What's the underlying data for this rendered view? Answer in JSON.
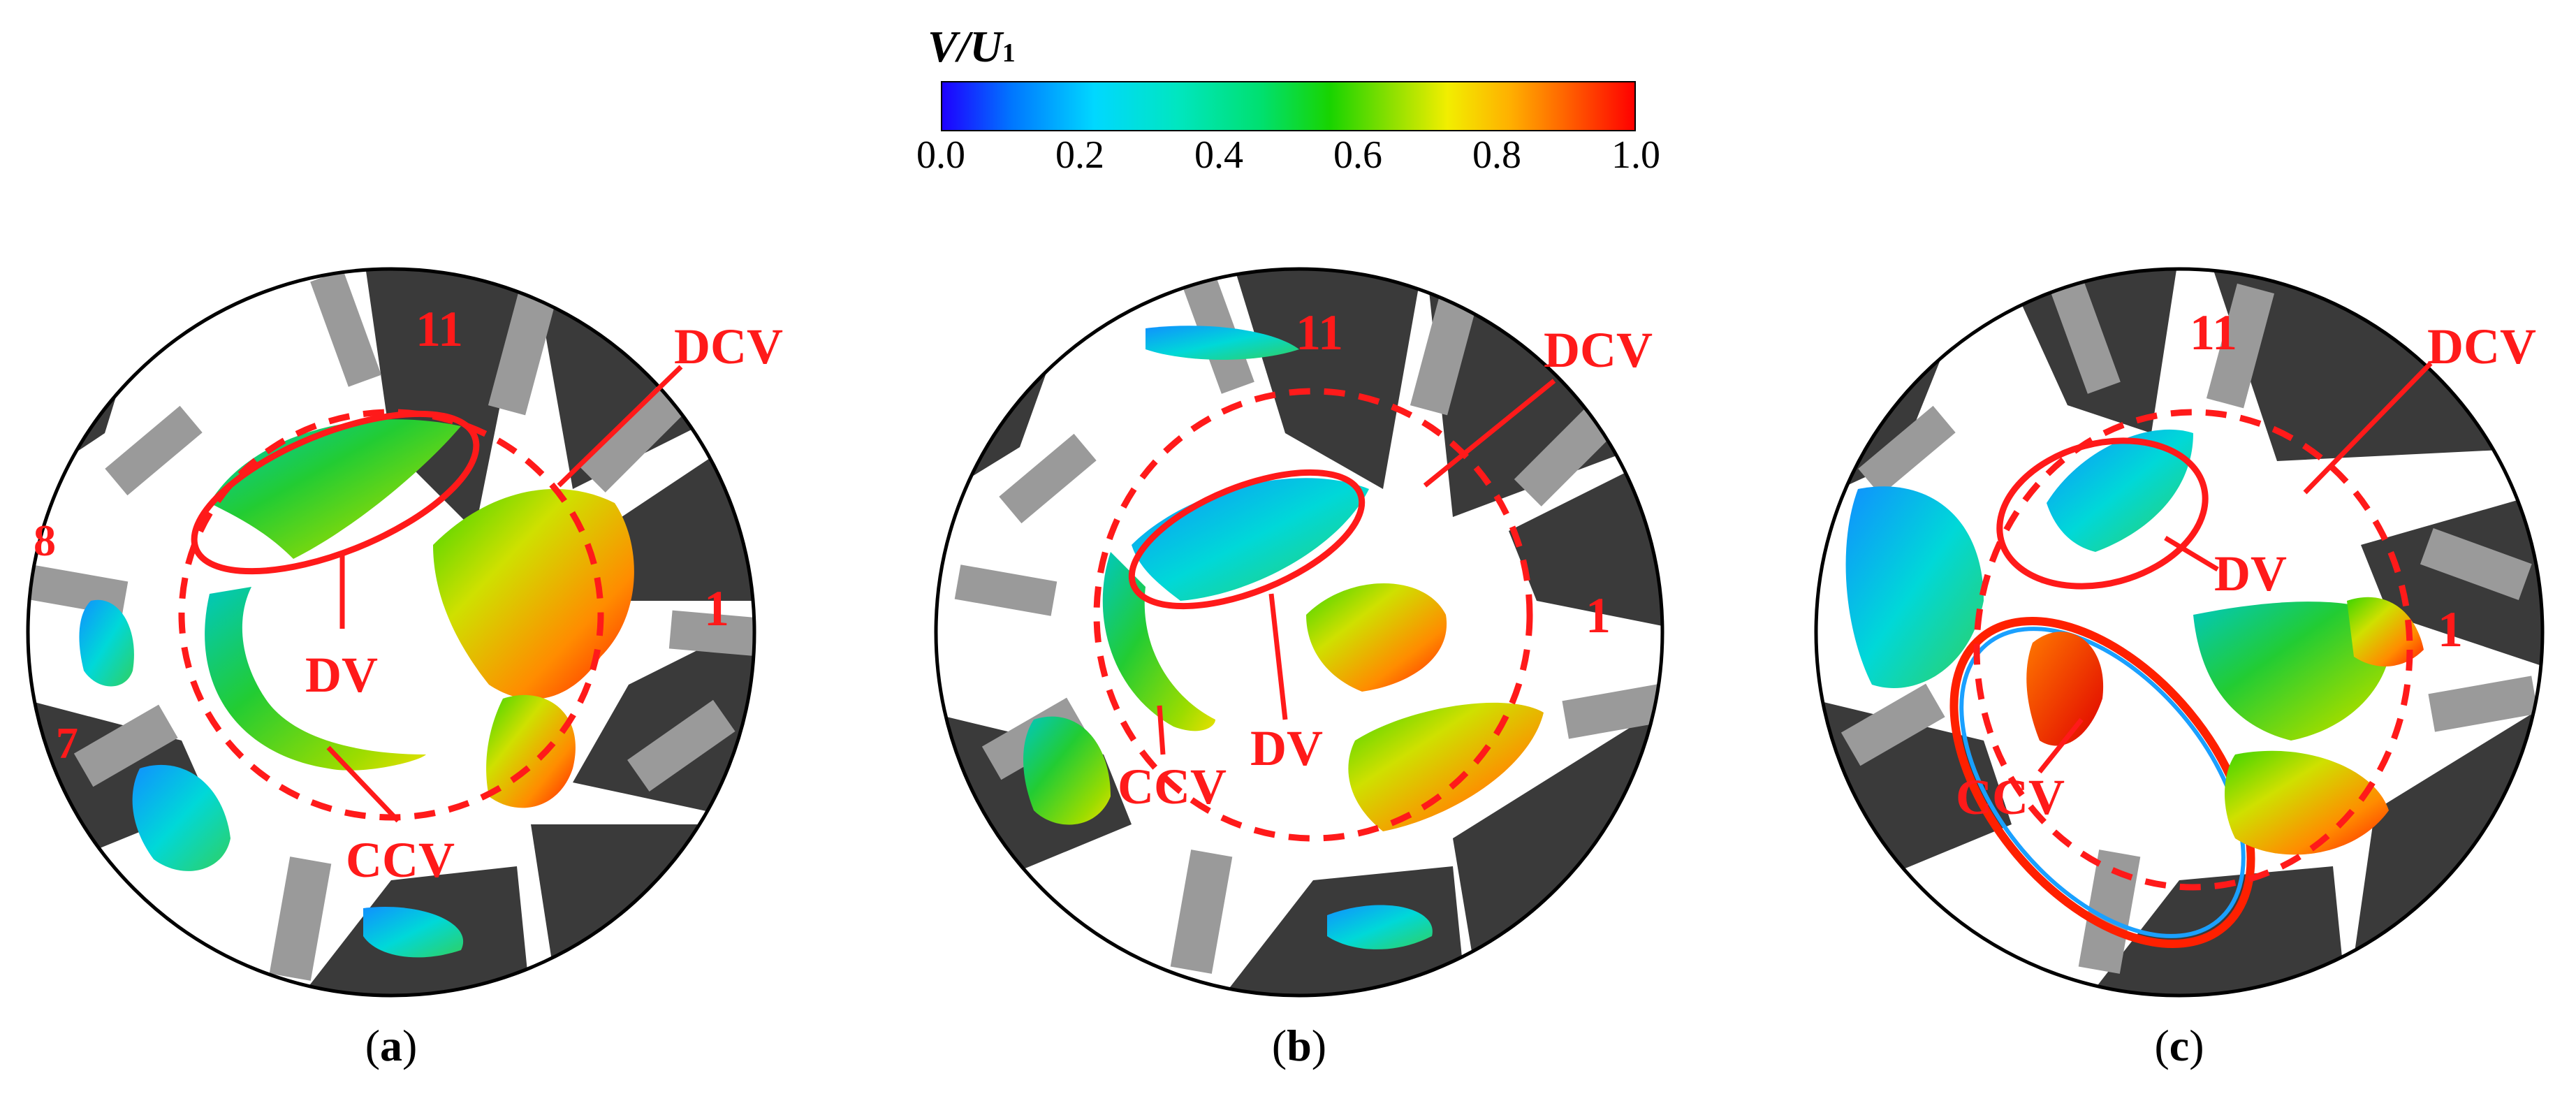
{
  "colorbar": {
    "title_main": "V/U",
    "title_sub": "1",
    "ticks": [
      "0.0",
      "0.2",
      "0.4",
      "0.6",
      "0.8",
      "1.0"
    ],
    "gradient_colors": [
      "#1e00ff",
      "#0076ff",
      "#00d8ff",
      "#00e6c0",
      "#00e070",
      "#18d400",
      "#8ee000",
      "#f2ee00",
      "#ffb000",
      "#ff5a00",
      "#ff0000"
    ]
  },
  "panels": [
    {
      "id": "a",
      "caption_letter": "a",
      "blade_numbers": [
        "11",
        "8",
        "7",
        "1"
      ],
      "vortex_labels": [
        "DCV",
        "DV",
        "CCV"
      ]
    },
    {
      "id": "b",
      "caption_letter": "b",
      "blade_numbers": [
        "11",
        "1"
      ],
      "vortex_labels": [
        "DCV",
        "DV",
        "CCV"
      ]
    },
    {
      "id": "c",
      "caption_letter": "c",
      "blade_numbers": [
        "11",
        "1"
      ],
      "vortex_labels": [
        "DCV",
        "DV",
        "CCV"
      ]
    }
  ],
  "annotation_color": "#ff1a1a"
}
